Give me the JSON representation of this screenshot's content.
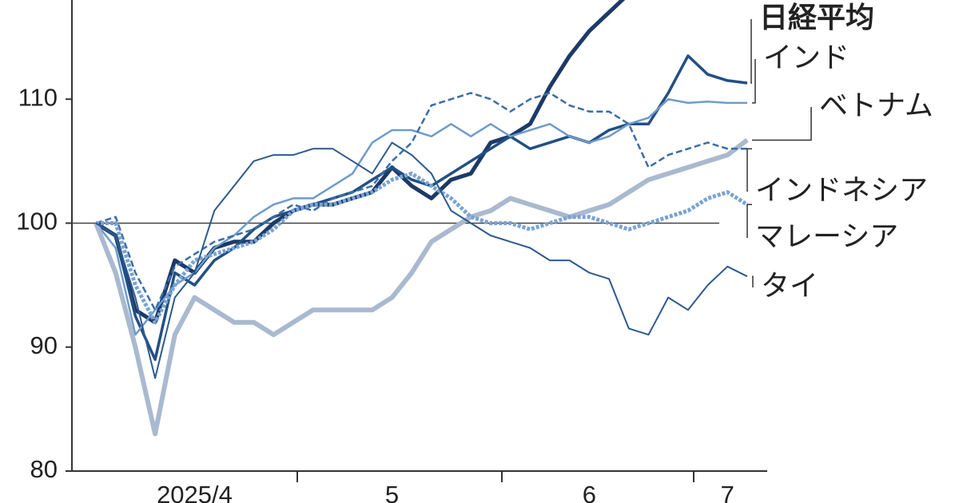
{
  "chart_data": {
    "type": "line",
    "categories": [
      null,
      null,
      null,
      null,
      null,
      "2025/4",
      null,
      null,
      null,
      null,
      null,
      null,
      null,
      null,
      null,
      "5",
      null,
      null,
      null,
      null,
      null,
      null,
      null,
      null,
      null,
      "6",
      null,
      null,
      null,
      null,
      null,
      null,
      "7",
      null
    ],
    "ylim": [
      80,
      118
    ],
    "yticks": [
      80,
      90,
      100,
      110
    ],
    "hline": 100,
    "series": [
      {
        "color": "#1c3a66",
        "width": 5,
        "dash": "none",
        "values": [
          100,
          99,
          93,
          92,
          97,
          96,
          98,
          98.5,
          98.5,
          100,
          101,
          101.5,
          101.5,
          102,
          102.5,
          104.5,
          103,
          102,
          103.5,
          104,
          106.5,
          107,
          108,
          111,
          113.5,
          115.5,
          117,
          118.5,
          null,
          null,
          null,
          null,
          null,
          null
        ]
      },
      {
        "name": "日経平均",
        "color": "#234f83",
        "width": 3.5,
        "dash": "none",
        "values": [
          100,
          99,
          92.5,
          89,
          96,
          95,
          97,
          98,
          99.5,
          100.5,
          101,
          101.5,
          102,
          102.5,
          103.5,
          104.5,
          103.5,
          103,
          104,
          105,
          106,
          107,
          106,
          106.5,
          107,
          106.5,
          107.5,
          108,
          108,
          110.5,
          113.5,
          112,
          111.5,
          111.3
        ]
      },
      {
        "name": "インド",
        "color": "#6f9bcb",
        "width": 2.5,
        "dash": "none",
        "values": [
          100,
          98,
          91,
          93,
          95,
          96,
          98,
          99,
          100.5,
          101.5,
          102,
          102,
          103,
          104,
          106.5,
          107.5,
          107.5,
          107,
          108,
          107,
          108,
          107,
          107.5,
          108,
          107,
          106.5,
          107,
          108,
          108.5,
          110,
          109.7,
          109.8,
          109.7,
          109.7
        ]
      },
      {
        "name": "ベトナム",
        "color": "#a9b9cf",
        "width": 6,
        "dash": "none",
        "values": [
          100,
          96,
          90,
          83,
          91,
          94,
          93,
          92,
          92,
          91,
          92,
          93,
          93,
          93,
          93,
          94,
          96,
          98.5,
          99.5,
          100.5,
          101,
          102,
          101.5,
          101,
          100.5,
          101,
          101.5,
          102.5,
          103.5,
          104,
          104.5,
          105,
          105.5,
          106.7
        ]
      },
      {
        "name": "インドネシア",
        "color": "#3a6ea8",
        "width": 2.5,
        "dash": "8 4",
        "values": [
          100,
          100.5,
          96,
          93,
          96.5,
          97.5,
          98.5,
          99,
          99.5,
          100.5,
          101.5,
          101,
          102,
          102.5,
          103,
          105,
          106.5,
          109.5,
          110,
          110.5,
          110,
          109,
          110,
          110.5,
          109.5,
          109,
          109,
          108,
          104.5,
          105.5,
          106,
          106.5,
          106,
          106
        ]
      },
      {
        "name": "マレーシア",
        "color": "#7aa3d4",
        "width": 5,
        "dash": "4 2",
        "values": [
          100,
          100,
          95,
          92,
          95,
          97,
          97.5,
          98,
          98.5,
          99.5,
          101,
          101.5,
          101.5,
          102,
          102.5,
          103.5,
          104,
          103,
          102,
          100.5,
          100,
          100,
          99.5,
          100,
          100.5,
          100.5,
          100,
          99.5,
          100,
          100.5,
          101,
          102,
          102.5,
          101.5
        ]
      },
      {
        "name": "タイ",
        "color": "#2c5a8e",
        "width": 2,
        "dash": "none",
        "values": [
          100,
          99,
          94,
          87.5,
          94,
          96,
          101,
          103,
          105,
          105.5,
          105.5,
          106,
          106,
          105,
          104,
          106.5,
          105.5,
          104,
          101,
          100,
          99,
          98.5,
          98,
          97,
          97,
          96,
          95.5,
          91.5,
          91,
          94,
          93,
          95,
          96.5,
          95.7
        ]
      }
    ]
  }
}
